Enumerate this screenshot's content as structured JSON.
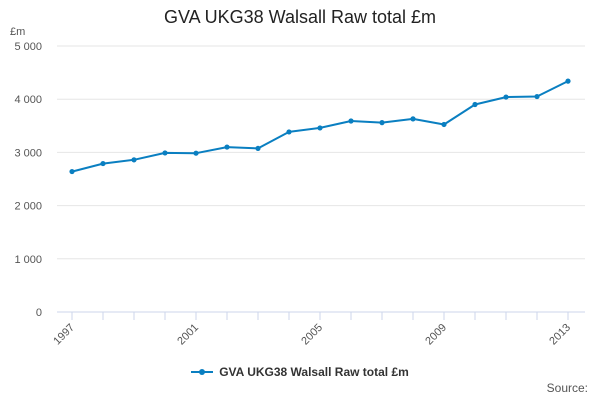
{
  "chart_data": {
    "type": "line",
    "title": "GVA UKG38 Walsall Raw total £m",
    "ylabel": "£m",
    "xlabel": "",
    "x": [
      1997,
      1998,
      1999,
      2000,
      2001,
      2002,
      2003,
      2004,
      2005,
      2006,
      2007,
      2008,
      2009,
      2010,
      2011,
      2012,
      2013
    ],
    "series": [
      {
        "name": "GVA UKG38 Walsall Raw total £m",
        "values": [
          2640,
          2790,
          2860,
          2990,
          2985,
          3100,
          3075,
          3385,
          3460,
          3590,
          3560,
          3630,
          3525,
          3900,
          4040,
          4050,
          4340
        ]
      }
    ],
    "x_tick_labels": [
      "1997",
      "2001",
      "2005",
      "2009",
      "2013"
    ],
    "y_tick_labels": [
      "0",
      "1 000",
      "2 000",
      "3 000",
      "4 000",
      "5 000"
    ],
    "y_ticks": [
      0,
      1000,
      2000,
      3000,
      4000,
      5000
    ],
    "ylim": [
      0,
      5000
    ],
    "xlim": [
      1997,
      2013
    ],
    "grid": true,
    "legend_placement": "bottom",
    "colors": {
      "series": "#0a7fc1",
      "grid": "#e6e6e6",
      "axis": "#ccd6eb"
    }
  },
  "source_label": "Source:"
}
